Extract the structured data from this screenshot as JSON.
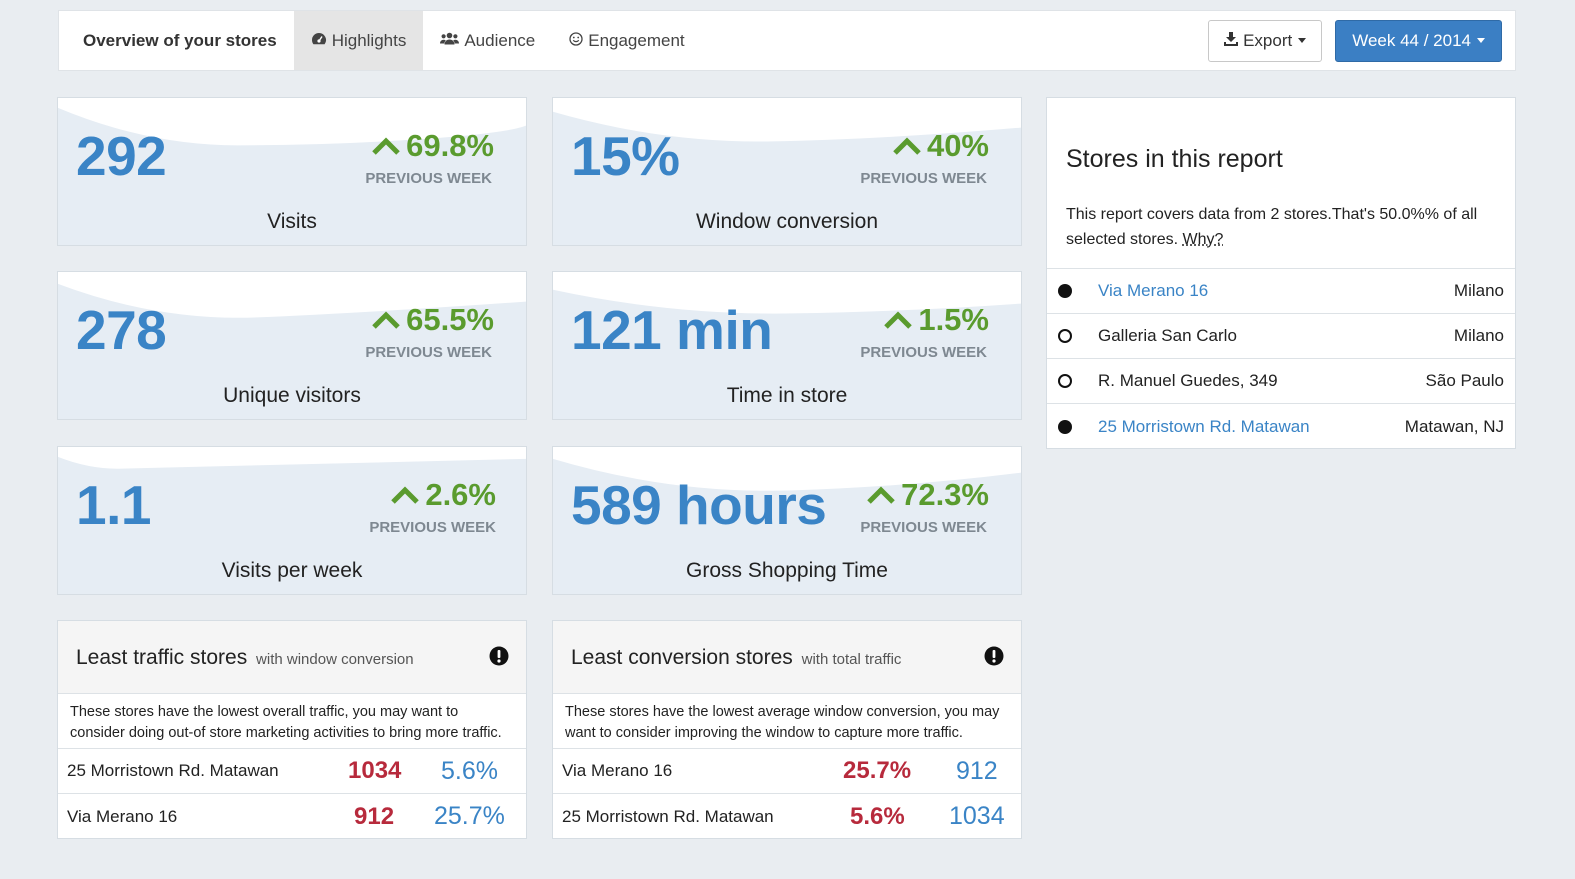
{
  "nav": {
    "tabs": [
      {
        "label": "Overview of your stores",
        "icon": ""
      },
      {
        "label": "Highlights",
        "icon": "dashboard-icon"
      },
      {
        "label": "Audience",
        "icon": "users-icon"
      },
      {
        "label": "Engagement",
        "icon": "smile-icon"
      }
    ],
    "active_tab": 1,
    "export_label": "Export",
    "week_label": "Week 44 / 2014"
  },
  "kpis": [
    {
      "value": "292",
      "change": "69.8%",
      "compare": "PREVIOUS WEEK",
      "label": "Visits",
      "trend": "up"
    },
    {
      "value": "15%",
      "change": "40%",
      "compare": "PREVIOUS WEEK",
      "label": "Window conversion",
      "trend": "up"
    },
    {
      "value": "278",
      "change": "65.5%",
      "compare": "PREVIOUS WEEK",
      "label": "Unique visitors",
      "trend": "up"
    },
    {
      "value": "121 min",
      "change": "1.5%",
      "compare": "PREVIOUS WEEK",
      "label": "Time in store",
      "trend": "up"
    },
    {
      "value": "1.1",
      "change": "2.6%",
      "compare": "PREVIOUS WEEK",
      "label": "Visits per week",
      "trend": "up"
    },
    {
      "value": "589 hours",
      "change": "72.3%",
      "compare": "PREVIOUS WEEK",
      "label": "Gross Shopping Time",
      "trend": "up"
    }
  ],
  "stores_panel": {
    "title": "Stores in this report",
    "description": "This report covers data from 2 stores.That's 50.0%% of all selected stores.",
    "why_link": "Why?",
    "stores": [
      {
        "name": "Via Merano 16",
        "city": "Milano",
        "included": true
      },
      {
        "name": "Galleria San Carlo",
        "city": "Milano",
        "included": false
      },
      {
        "name": "R. Manuel Guedes, 349",
        "city": "São Paulo",
        "included": false
      },
      {
        "name": "25 Morristown Rd. Matawan",
        "city": "Matawan, NJ",
        "included": true
      }
    ]
  },
  "least_traffic": {
    "title": "Least traffic stores",
    "subtitle": "with window conversion",
    "description": "These stores have the lowest overall traffic, you may want to consider doing out-of store marketing activities to bring more traffic.",
    "rows": [
      {
        "name": "25 Morristown Rd. Matawan",
        "primary": "1034",
        "secondary": "5.6%"
      },
      {
        "name": "Via Merano 16",
        "primary": "912",
        "secondary": "25.7%"
      }
    ]
  },
  "least_conversion": {
    "title": "Least conversion stores",
    "subtitle": "with total traffic",
    "description": "These stores have the lowest average window conversion, you may want to consider improving the window to capture more traffic.",
    "rows": [
      {
        "name": "Via Merano 16",
        "primary": "25.7%",
        "secondary": "912"
      },
      {
        "name": "25 Morristown Rd. Matawan",
        "primary": "5.6%",
        "secondary": "1034"
      }
    ]
  },
  "colors": {
    "accent_blue": "#3a84c6",
    "positive_green": "#5a9b2e",
    "negative_red": "#b72a3c",
    "primary_button": "#3b7fc4"
  }
}
